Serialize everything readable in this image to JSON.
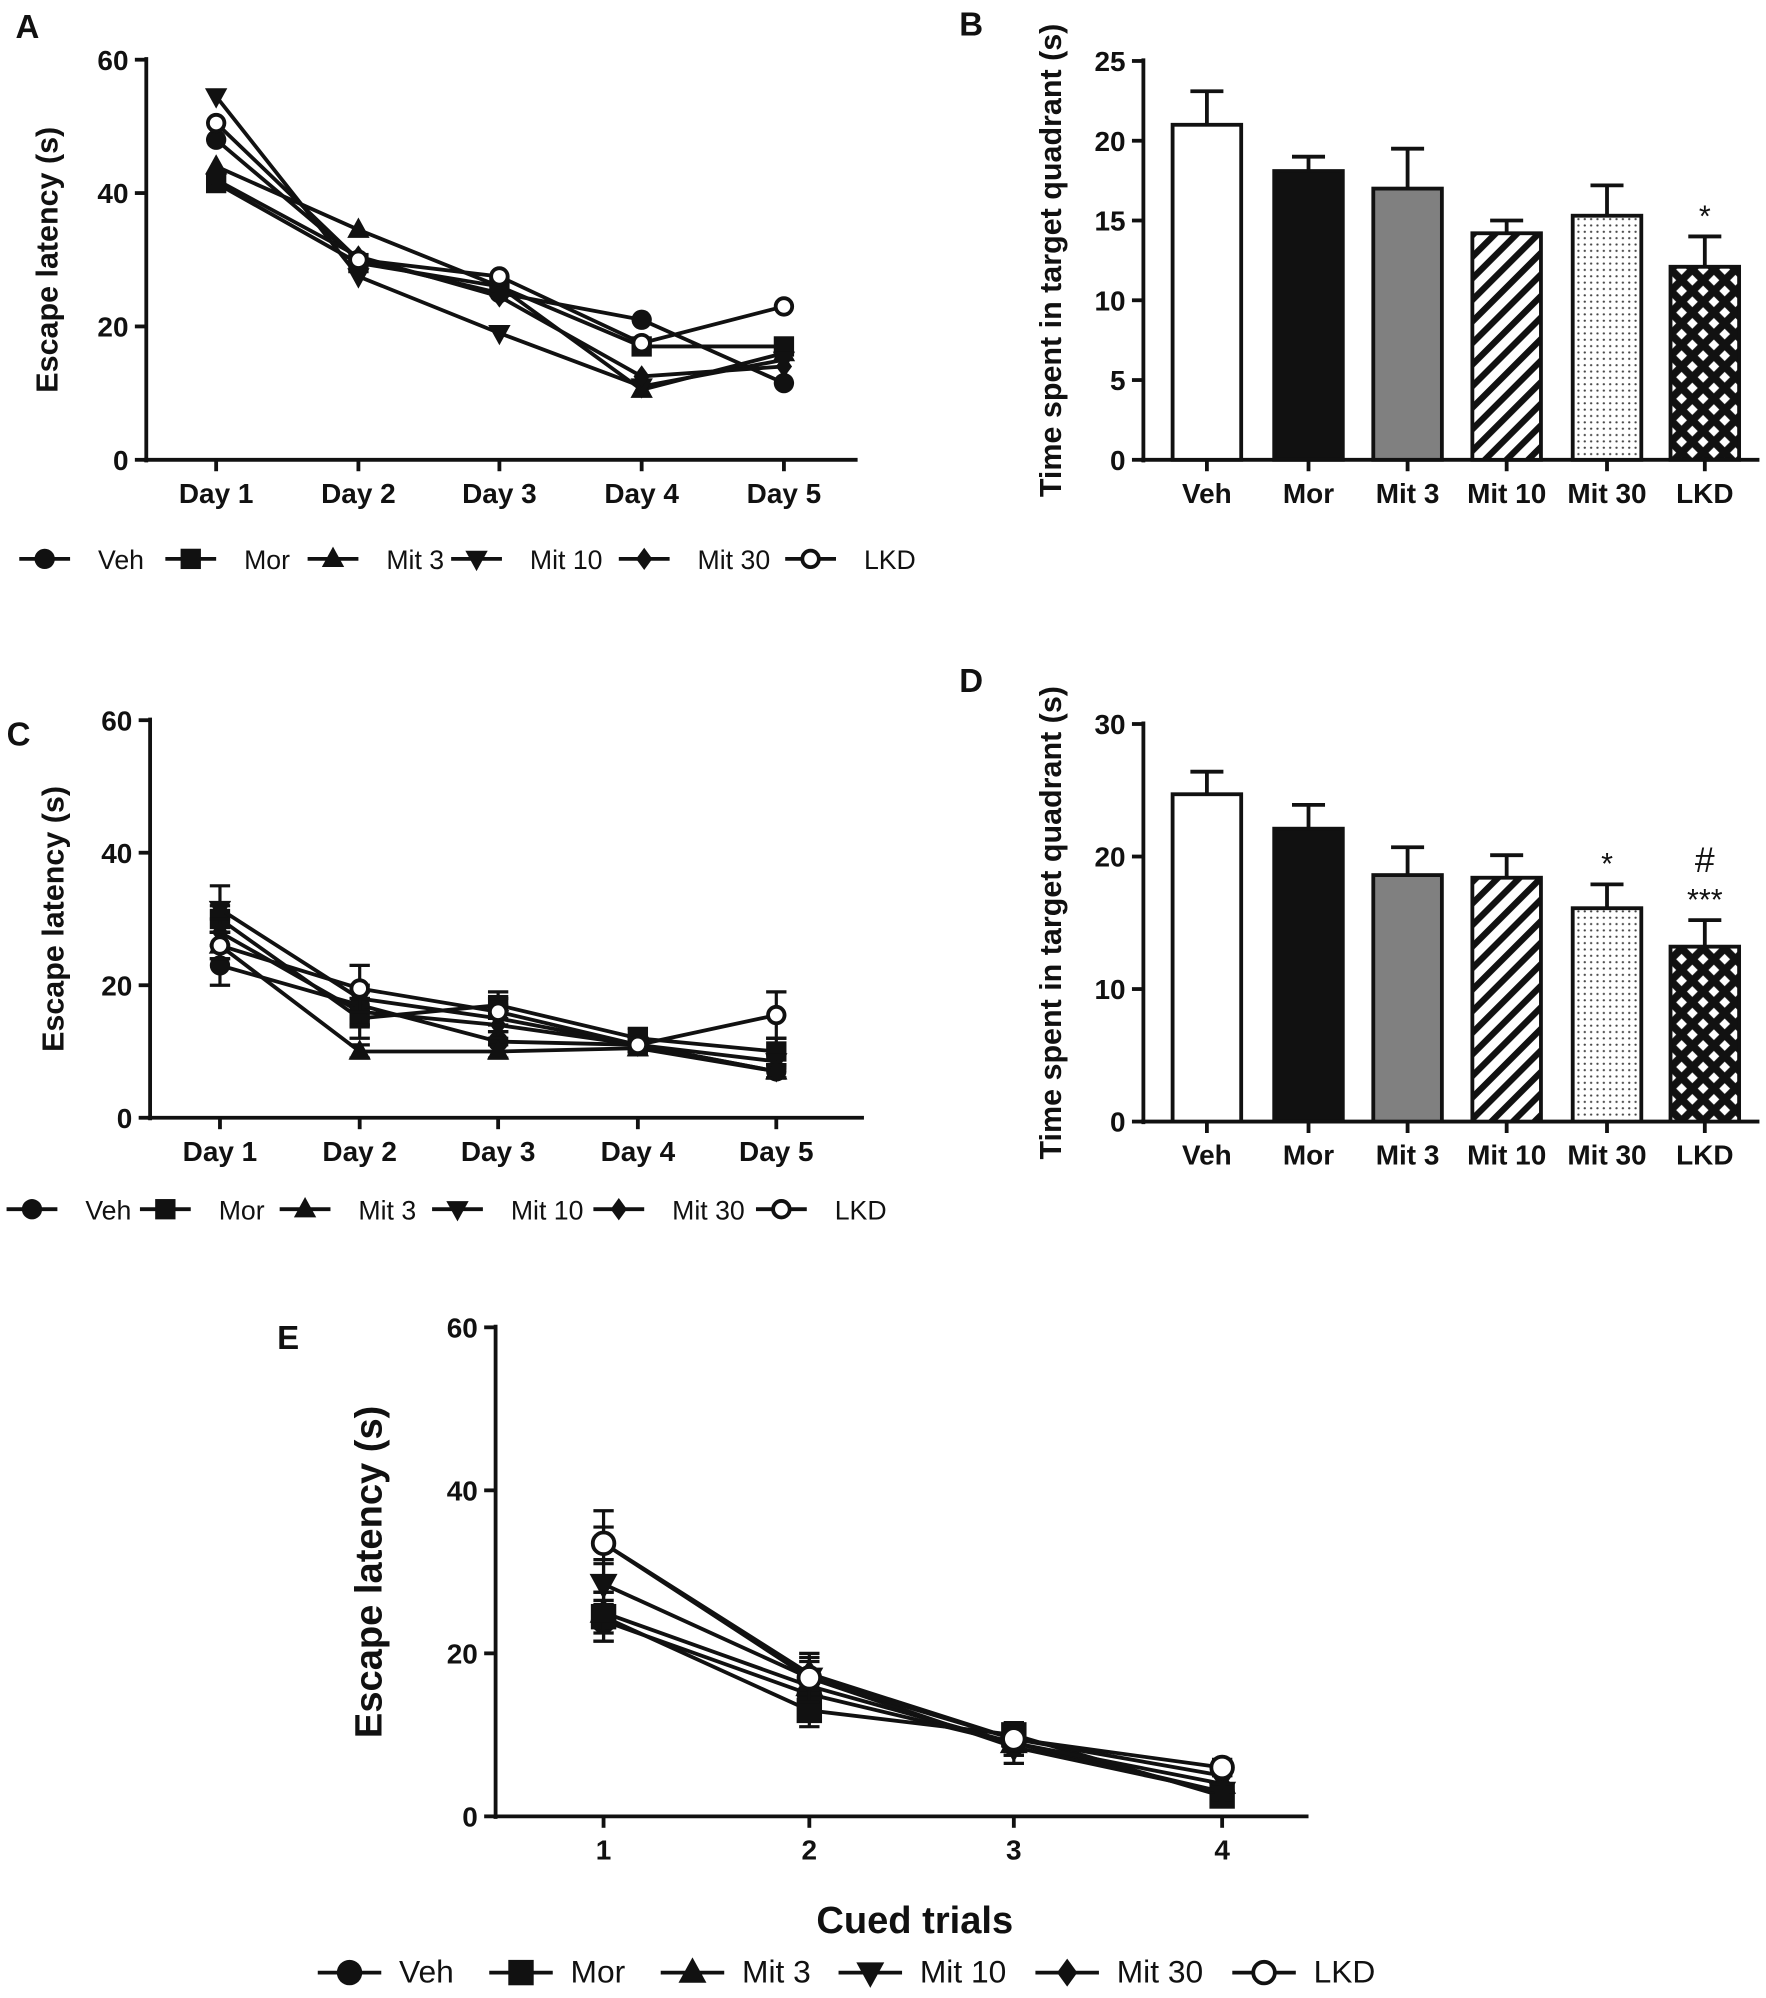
{
  "chart_data": [
    {
      "panel": "A",
      "type": "line",
      "categories": [
        "Day 1",
        "Day 2",
        "Day 3",
        "Day 4",
        "Day 5"
      ],
      "ylabel": "Escape latency (s)",
      "xlabel": "",
      "ylim": [
        0,
        60
      ],
      "yticks": [
        0,
        20,
        40,
        60
      ],
      "legend_position": "bottom",
      "series": [
        {
          "name": "Veh",
          "marker": "circle",
          "values": [
            48,
            30,
            25,
            21,
            11.5
          ]
        },
        {
          "name": "Mor",
          "marker": "square",
          "values": [
            41.5,
            29.5,
            26,
            17,
            17
          ]
        },
        {
          "name": "Mit 3",
          "marker": "triangle-up",
          "values": [
            44,
            34.5,
            26,
            10.5,
            16
          ]
        },
        {
          "name": "Mit 10",
          "marker": "triangle-down",
          "values": [
            54.5,
            27.5,
            19,
            11,
            15
          ]
        },
        {
          "name": "Mit 30",
          "marker": "diamond",
          "values": [
            42,
            30.5,
            24.5,
            12.5,
            14
          ]
        },
        {
          "name": "LKD",
          "marker": "open-circle",
          "values": [
            50.5,
            30,
            27.5,
            17.5,
            23
          ]
        }
      ]
    },
    {
      "panel": "B",
      "type": "bar",
      "categories": [
        "Veh",
        "Mor",
        "Mit 3",
        "Mit 10",
        "Mit 30",
        "LKD"
      ],
      "values": [
        21,
        18.1,
        17,
        14.2,
        15.3,
        12.1
      ],
      "errors": [
        2.1,
        0.9,
        2.5,
        0.8,
        1.9,
        1.9
      ],
      "fills": [
        "white",
        "black",
        "gray",
        "hatch",
        "dots",
        "crosshatch"
      ],
      "annotations": [
        "",
        "",
        "",
        "",
        "",
        "*"
      ],
      "annotations2": [
        "",
        "",
        "",
        "",
        "",
        ""
      ],
      "ylabel": "Time spent in target quadrant (s)",
      "ylim": [
        0,
        25
      ],
      "yticks": [
        0,
        5,
        10,
        15,
        20,
        25
      ]
    },
    {
      "panel": "C",
      "type": "line",
      "categories": [
        "Day 1",
        "Day 2",
        "Day 3",
        "Day 4",
        "Day 5"
      ],
      "ylabel": "Escape latency (s)",
      "xlabel": "",
      "ylim": [
        0,
        60
      ],
      "yticks": [
        0,
        20,
        40,
        60
      ],
      "legend_position": "bottom",
      "series": [
        {
          "name": "Veh",
          "marker": "circle",
          "values": [
            23,
            17,
            11.5,
            11,
            7
          ],
          "errors": [
            3,
            2,
            1.5,
            1,
            1
          ]
        },
        {
          "name": "Mor",
          "marker": "square",
          "values": [
            30,
            15,
            17,
            12,
            10
          ],
          "errors": [
            2,
            3,
            2,
            1.5,
            2
          ]
        },
        {
          "name": "Mit 3",
          "marker": "triangle-up",
          "values": [
            26,
            10,
            10,
            10.5,
            7
          ],
          "errors": [
            2,
            1,
            1,
            1,
            1
          ]
        },
        {
          "name": "Mit 10",
          "marker": "triangle-down",
          "values": [
            31.5,
            18,
            15,
            11,
            8.5
          ],
          "errors": [
            3.5,
            2,
            2,
            1,
            1
          ]
        },
        {
          "name": "Mit 30",
          "marker": "diamond",
          "values": [
            28,
            16,
            14,
            11,
            7
          ],
          "errors": [
            2,
            2,
            2,
            1,
            1
          ]
        },
        {
          "name": "LKD",
          "marker": "open-circle",
          "values": [
            26,
            19.5,
            16,
            11,
            15.5
          ],
          "errors": [
            2,
            3.5,
            2,
            1,
            3.5
          ]
        }
      ]
    },
    {
      "panel": "D",
      "type": "bar",
      "categories": [
        "Veh",
        "Mor",
        "Mit 3",
        "Mit 10",
        "Mit 30",
        "LKD"
      ],
      "values": [
        24.7,
        22.1,
        18.6,
        18.4,
        16.1,
        13.2
      ],
      "errors": [
        1.7,
        1.8,
        2.1,
        1.7,
        1.8,
        2.0
      ],
      "fills": [
        "white",
        "black",
        "gray",
        "hatch",
        "dots",
        "crosshatch"
      ],
      "annotations": [
        "",
        "",
        "",
        "",
        "*",
        "***"
      ],
      "annotations2": [
        "",
        "",
        "",
        "",
        "",
        "#"
      ],
      "ylabel": "Time spent in target quadrant (s)",
      "ylim": [
        0,
        30
      ],
      "yticks": [
        0,
        10,
        20,
        30
      ]
    },
    {
      "panel": "E",
      "type": "line",
      "categories": [
        "1",
        "2",
        "3",
        "4"
      ],
      "ylabel": "Escape latency (s)",
      "xlabel": "Cued trials",
      "ylim": [
        0,
        60
      ],
      "yticks": [
        0,
        20,
        40,
        60
      ],
      "legend_position": "bottom",
      "series": [
        {
          "name": "Veh",
          "marker": "circle",
          "values": [
            24,
            15,
            9,
            3
          ],
          "errors": [
            2.5,
            2,
            1.5,
            1
          ]
        },
        {
          "name": "Mor",
          "marker": "square",
          "values": [
            24.5,
            13,
            10,
            2.5
          ],
          "errors": [
            3,
            2,
            1.5,
            1
          ]
        },
        {
          "name": "Mit 3",
          "marker": "triangle-up",
          "values": [
            25,
            16,
            9,
            4
          ],
          "errors": [
            2.5,
            2,
            1.5,
            1
          ]
        },
        {
          "name": "Mit 10",
          "marker": "triangle-down",
          "values": [
            28.5,
            17,
            8.5,
            3
          ],
          "errors": [
            2.5,
            2,
            2,
            1
          ]
        },
        {
          "name": "Mit 30",
          "marker": "diamond",
          "values": [
            33.5,
            17.5,
            9.5,
            5
          ],
          "errors": [
            2,
            2,
            1.5,
            1
          ]
        },
        {
          "name": "LKD",
          "marker": "open-circle",
          "values": [
            33.5,
            17,
            9.5,
            6
          ],
          "errors": [
            4,
            3,
            1.5,
            1
          ]
        }
      ]
    }
  ]
}
